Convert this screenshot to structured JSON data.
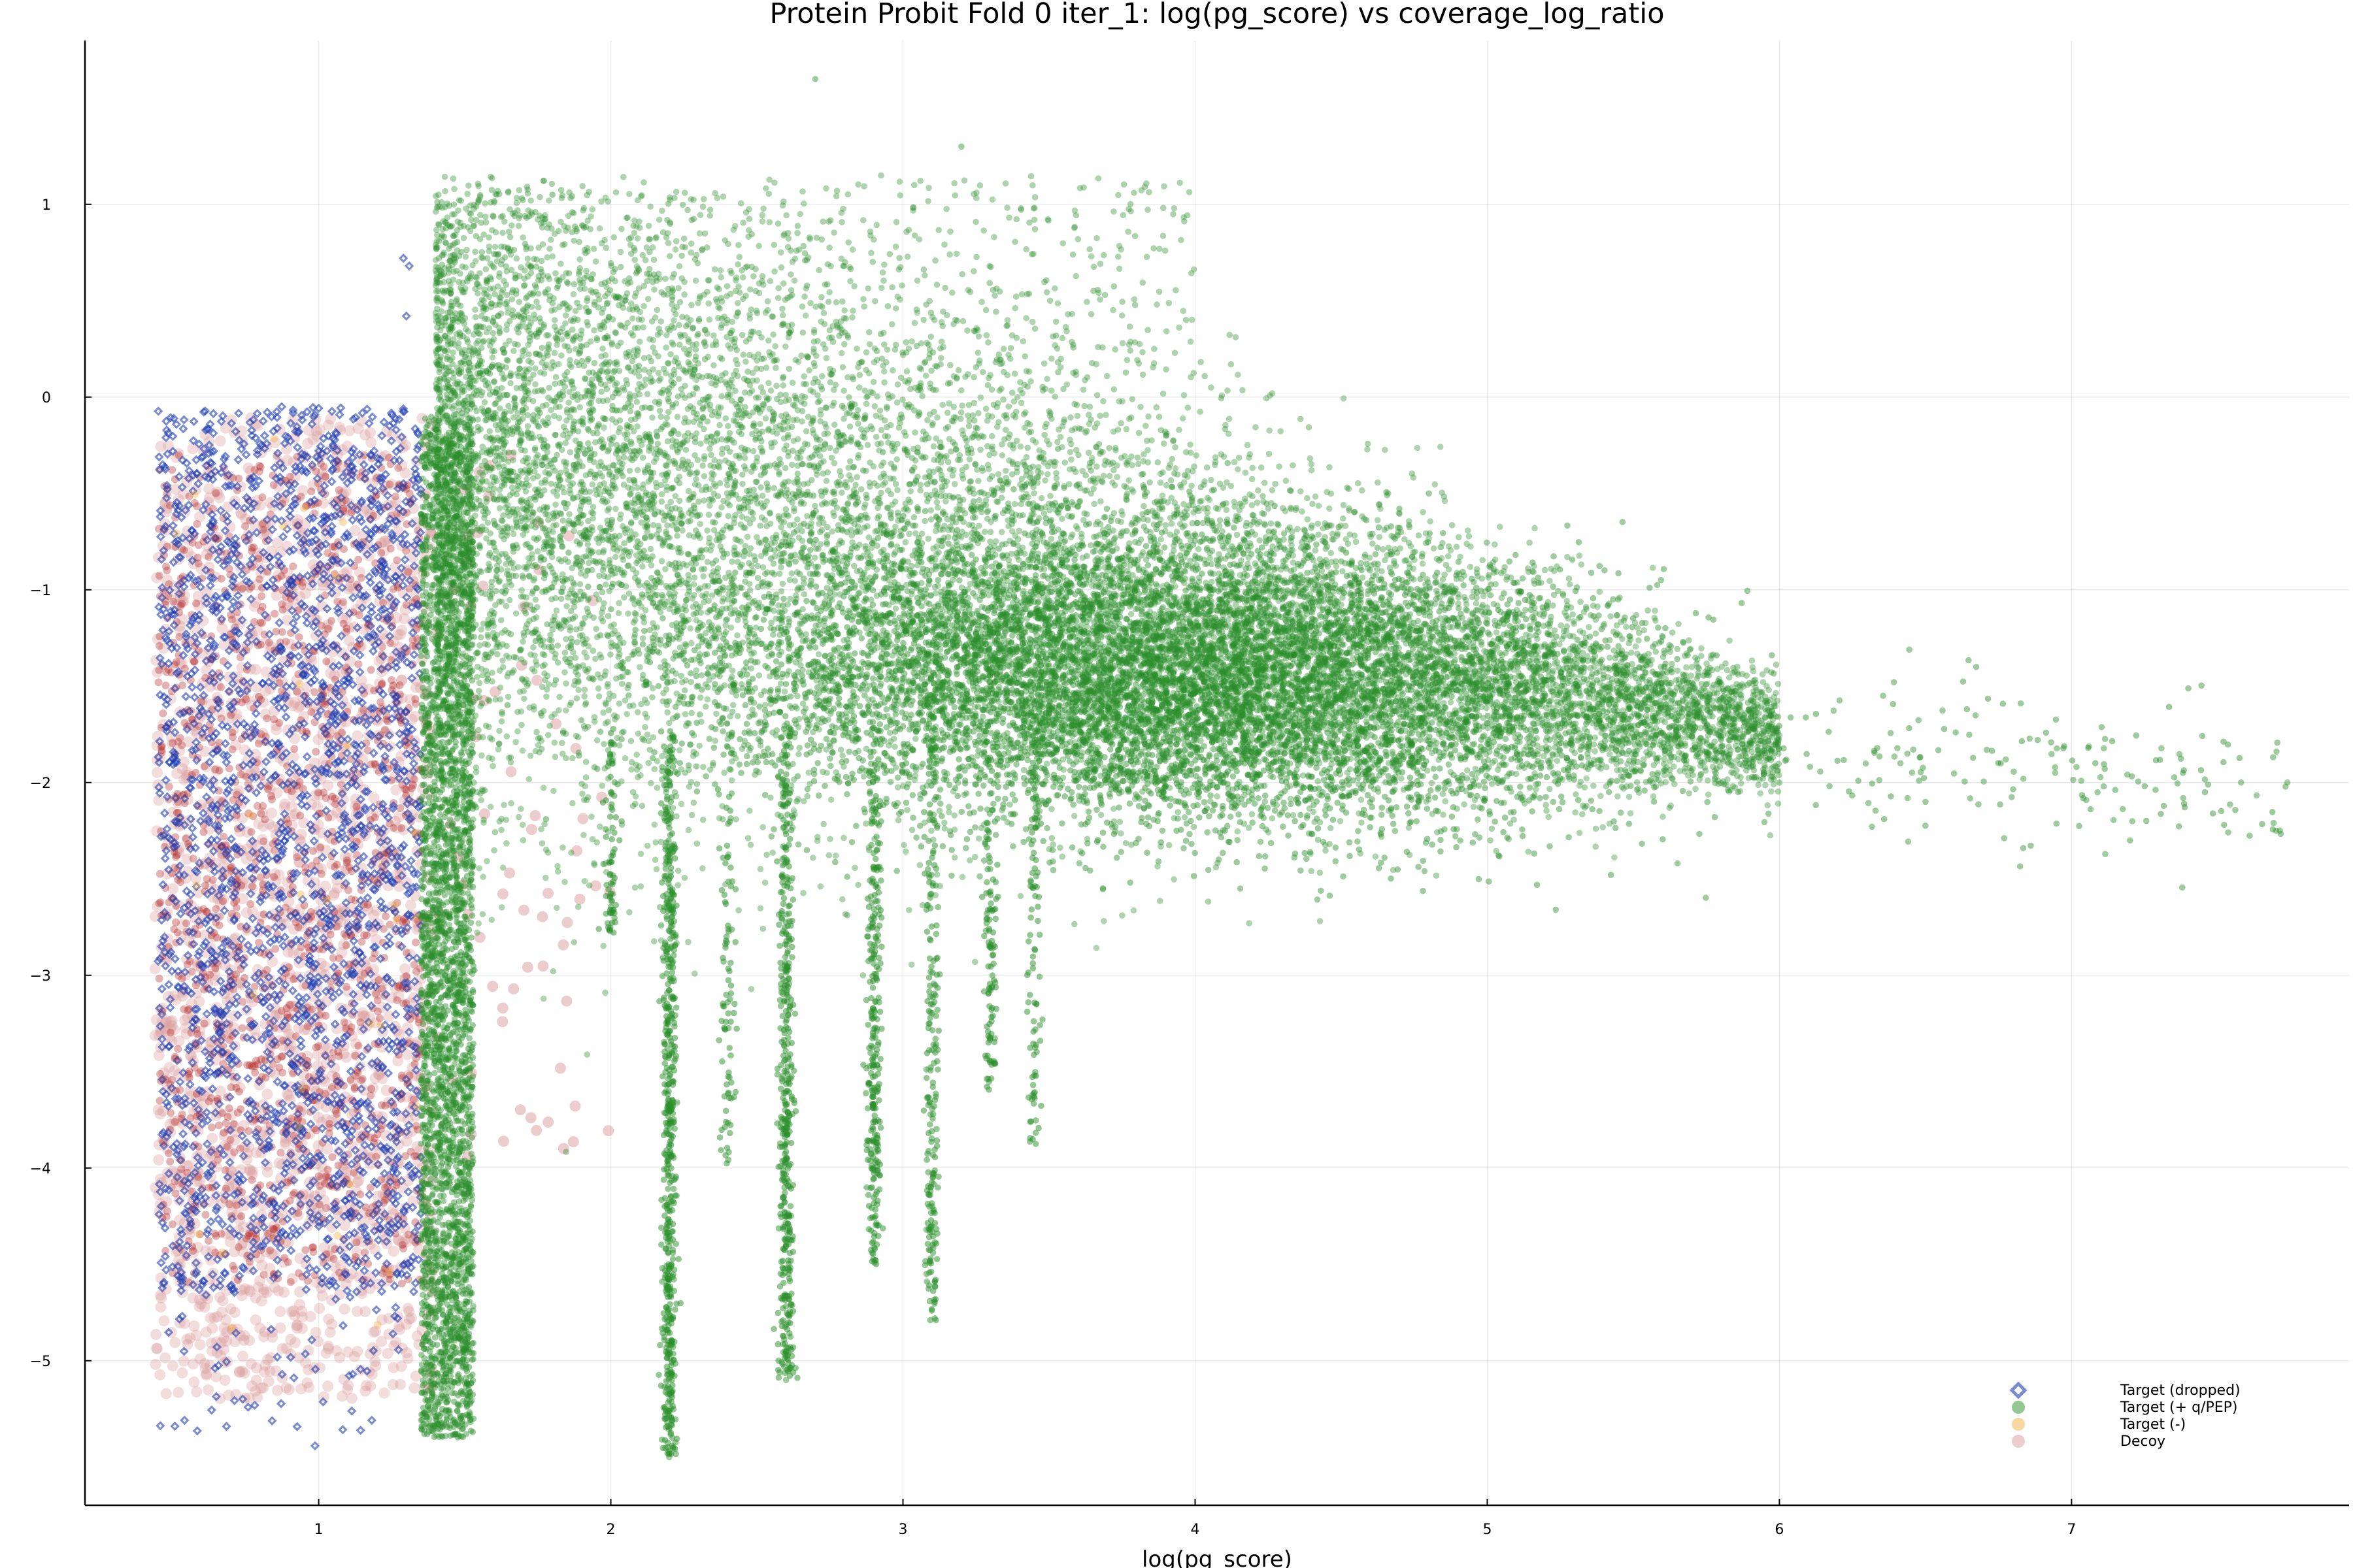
{
  "chart_data": {
    "type": "scatter",
    "title": "Protein Probit Fold 0 iter_1: log(pg_score) vs coverage_log_ratio",
    "xlabel": "log(pg_score)",
    "ylabel": "",
    "xlim": [
      0.2,
      7.95
    ],
    "ylim": [
      -5.75,
      1.85
    ],
    "xticks": [
      1,
      2,
      3,
      4,
      5,
      6,
      7
    ],
    "yticks": [
      1,
      0,
      -1,
      -2,
      -3,
      -4,
      -5
    ],
    "grid": true,
    "legend_position": "bottom-right",
    "series": [
      {
        "name": "Target (dropped)",
        "marker": "diamond",
        "color": "#1f3fb4",
        "point_count_estimate": 2500,
        "extent": {
          "x": [
            0.42,
            1.38
          ],
          "y": [
            -5.5,
            0.72
          ]
        },
        "samples": [
          [
            0.45,
            -0.1
          ],
          [
            0.6,
            -1.2
          ],
          [
            0.8,
            -2.4
          ],
          [
            1.0,
            -3.5
          ],
          [
            1.2,
            -0.8
          ],
          [
            1.3,
            0.7
          ],
          [
            0.55,
            -4.4
          ],
          [
            0.9,
            -5.0
          ],
          [
            1.25,
            0.1
          ],
          [
            1.1,
            -4.6
          ]
        ]
      },
      {
        "name": "Target (+ q/PEP)",
        "marker": "circle",
        "color": "#2a8f2a",
        "point_count_estimate": 30000,
        "extent": {
          "x": [
            1.3,
            7.75
          ],
          "y": [
            -5.55,
            1.65
          ]
        },
        "samples": [
          [
            1.4,
            -0.2
          ],
          [
            1.5,
            -4.8
          ],
          [
            2.2,
            -5.5
          ],
          [
            2.6,
            -5.1
          ],
          [
            2.7,
            1.65
          ],
          [
            3.0,
            -1.3
          ],
          [
            3.5,
            -1.6
          ],
          [
            4.0,
            -1.5
          ],
          [
            4.5,
            -1.7
          ],
          [
            5.0,
            -1.8
          ],
          [
            5.5,
            -1.9
          ],
          [
            6.0,
            -2.0
          ],
          [
            6.5,
            -2.1
          ],
          [
            7.2,
            -2.3
          ],
          [
            7.7,
            -2.25
          ],
          [
            4.8,
            -0.5
          ],
          [
            1.8,
            1.05
          ],
          [
            3.2,
            1.3
          ]
        ]
      },
      {
        "name": "Target (-)",
        "marker": "circle",
        "color": "#f5b041",
        "point_count_estimate": 40,
        "extent": {
          "x": [
            0.5,
            1.4
          ],
          "y": [
            -5.3,
            -0.1
          ]
        },
        "samples": [
          [
            0.7,
            -4.6
          ],
          [
            0.75,
            -4.8
          ],
          [
            1.2,
            -0.1
          ],
          [
            0.9,
            -1.5
          ]
        ]
      },
      {
        "name": "Decoy",
        "marker": "circle",
        "color": "#b22222",
        "point_count_estimate": 5000,
        "extent": {
          "x": [
            0.42,
            2.0
          ],
          "y": [
            -5.47,
            0.0
          ]
        },
        "samples": [
          [
            0.45,
            -0.3
          ],
          [
            0.6,
            -2.6
          ],
          [
            0.8,
            -3.2
          ],
          [
            1.0,
            -4.5
          ],
          [
            1.2,
            -5.2
          ],
          [
            0.55,
            -5.47
          ],
          [
            1.6,
            -3.2
          ],
          [
            1.9,
            -3.7
          ],
          [
            1.3,
            -2.2
          ],
          [
            1.8,
            -2.3
          ]
        ]
      }
    ]
  }
}
